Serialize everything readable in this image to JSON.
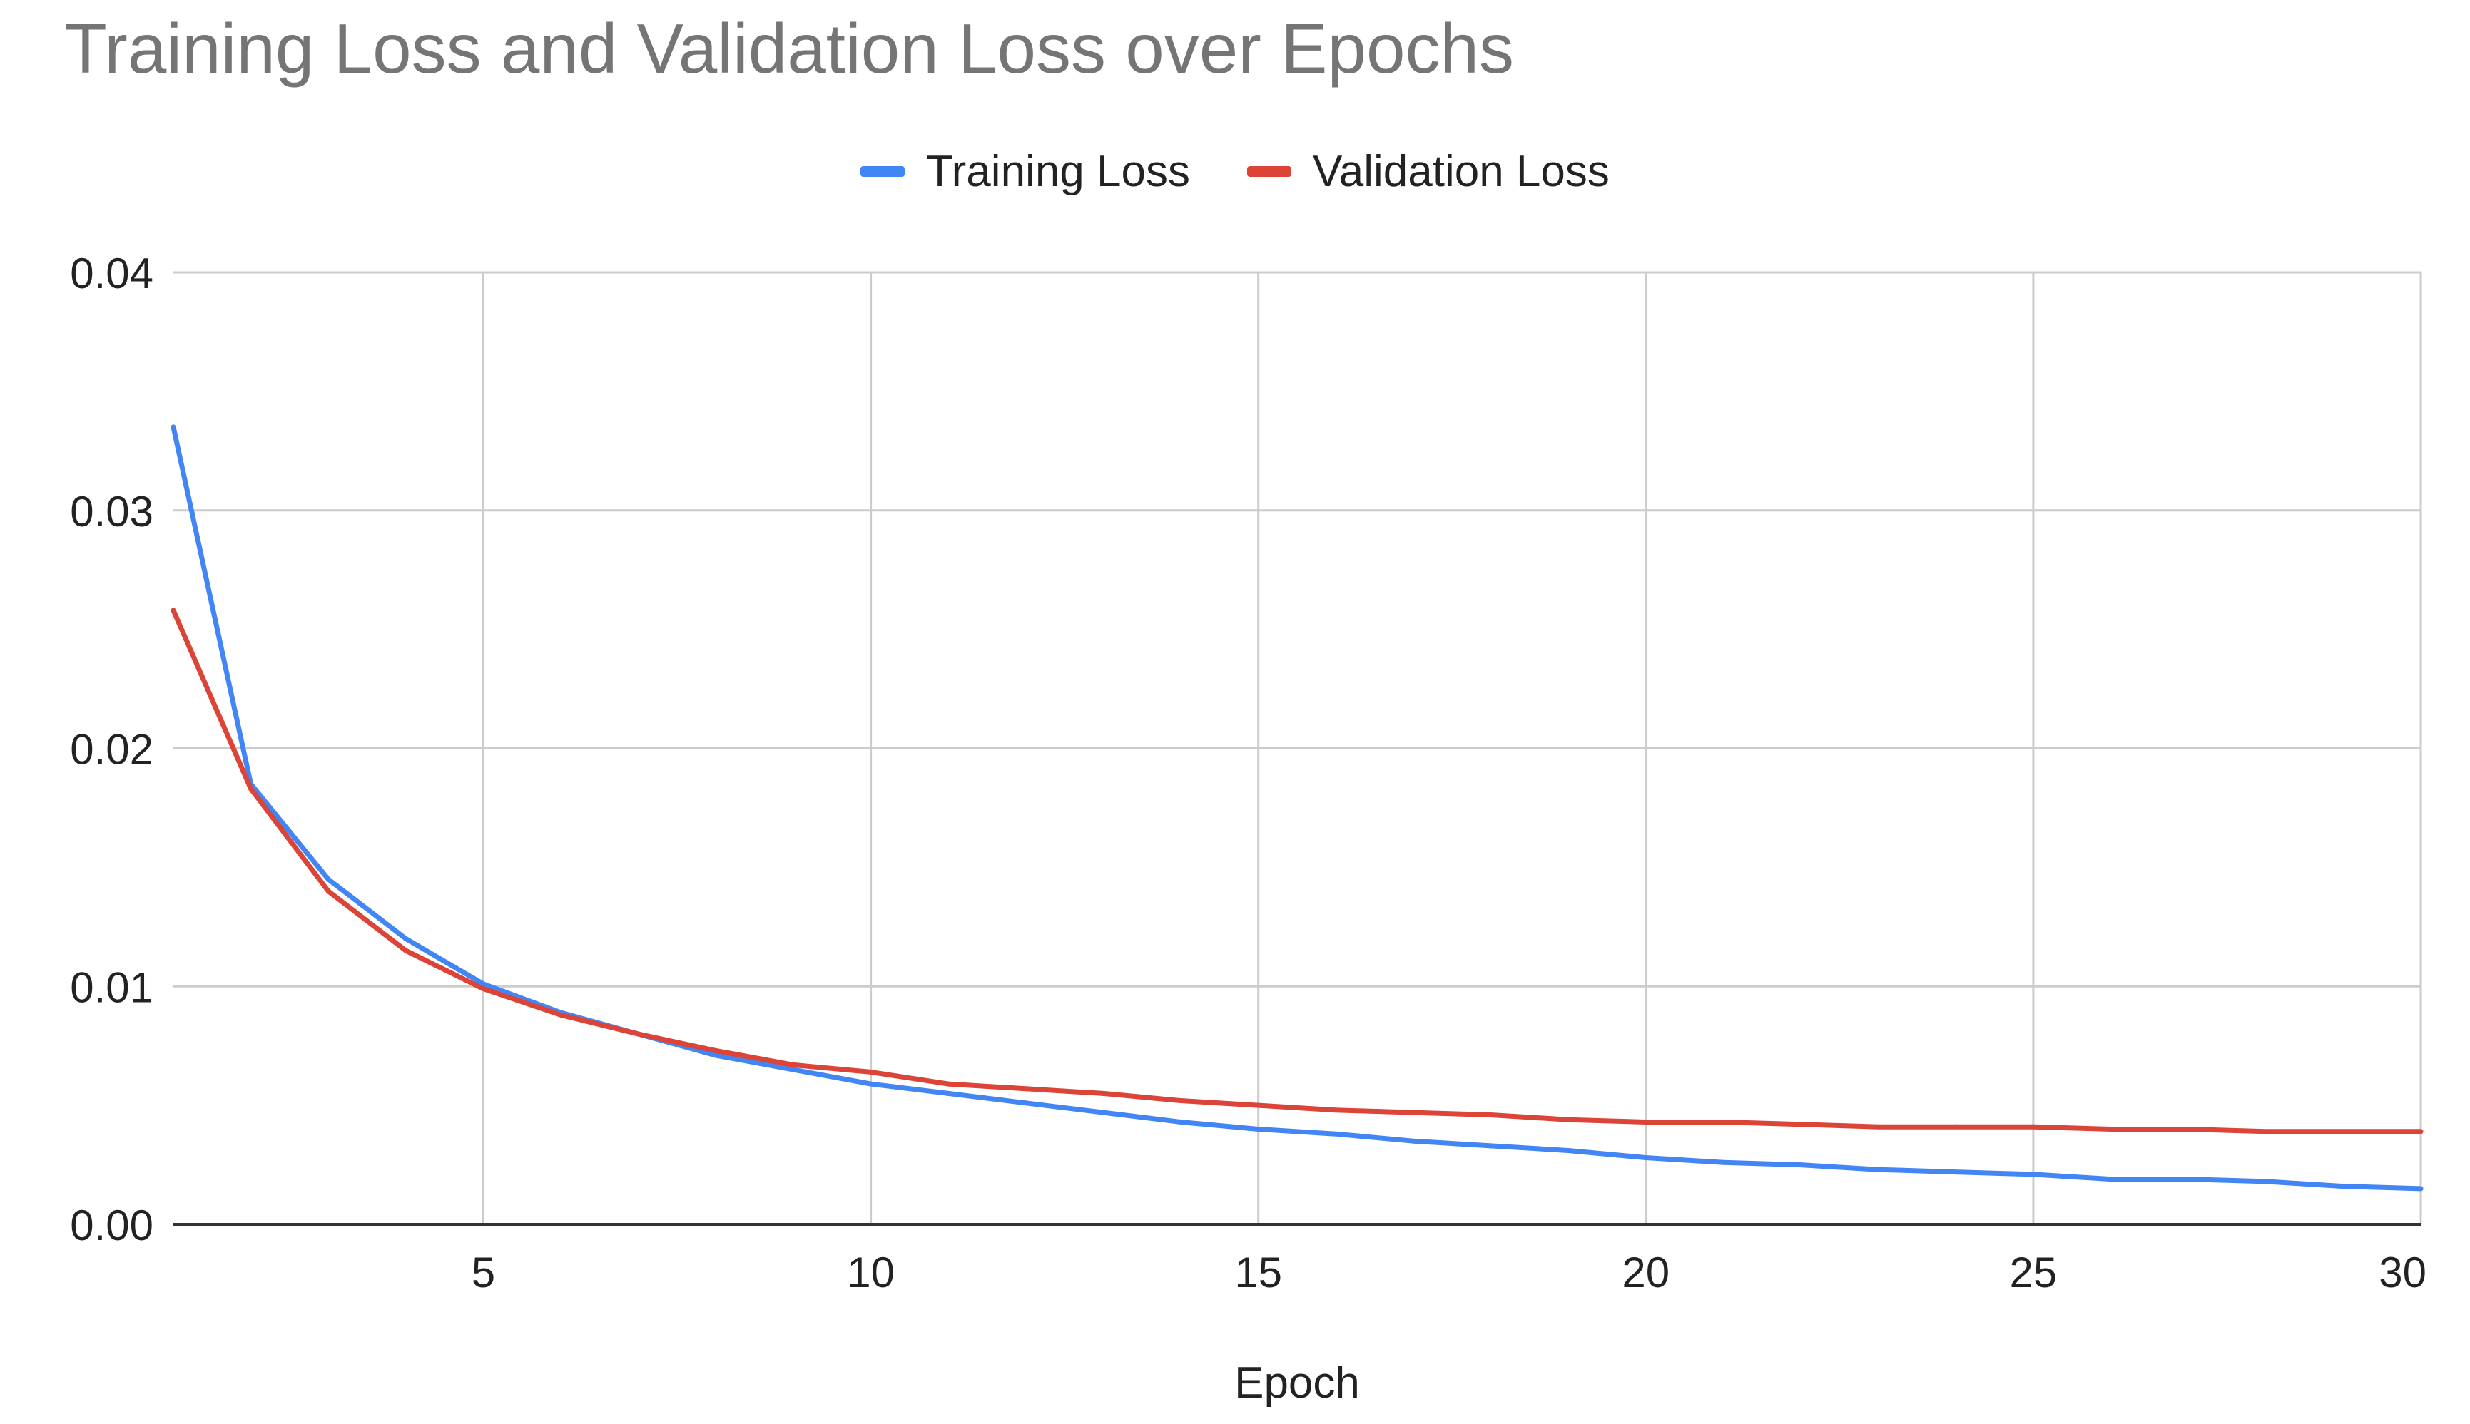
{
  "chart_data": {
    "type": "line",
    "title": "Training Loss and Validation Loss over Epochs",
    "xlabel": "Epoch",
    "ylabel": "",
    "xlim": [
      1,
      30
    ],
    "ylim": [
      0,
      0.04
    ],
    "x_ticks": [
      5,
      10,
      15,
      20,
      25,
      30
    ],
    "y_ticks": [
      "0.00",
      "0.01",
      "0.02",
      "0.03",
      "0.04"
    ],
    "grid": true,
    "legend_position": "top-center",
    "x": [
      1,
      2,
      3,
      4,
      5,
      6,
      7,
      8,
      9,
      10,
      11,
      12,
      13,
      14,
      15,
      16,
      17,
      18,
      19,
      20,
      21,
      22,
      23,
      24,
      25,
      26,
      27,
      28,
      29,
      30
    ],
    "series": [
      {
        "name": "Training Loss",
        "color": "#4285F4",
        "values": [
          0.0335,
          0.0185,
          0.0145,
          0.012,
          0.0101,
          0.0089,
          0.008,
          0.0071,
          0.0065,
          0.0059,
          0.0055,
          0.0051,
          0.0047,
          0.0043,
          0.004,
          0.0038,
          0.0035,
          0.0033,
          0.0031,
          0.0028,
          0.0026,
          0.0025,
          0.0023,
          0.0022,
          0.0021,
          0.0019,
          0.0019,
          0.0018,
          0.0016,
          0.0015
        ]
      },
      {
        "name": "Validation Loss",
        "color": "#DB4437",
        "values": [
          0.0258,
          0.0183,
          0.014,
          0.0115,
          0.0099,
          0.0088,
          0.008,
          0.0073,
          0.0067,
          0.0064,
          0.0059,
          0.0057,
          0.0055,
          0.0052,
          0.005,
          0.0048,
          0.0047,
          0.0046,
          0.0044,
          0.0043,
          0.0043,
          0.0042,
          0.0041,
          0.0041,
          0.0041,
          0.004,
          0.004,
          0.0039,
          0.0039,
          0.0039
        ]
      }
    ]
  }
}
